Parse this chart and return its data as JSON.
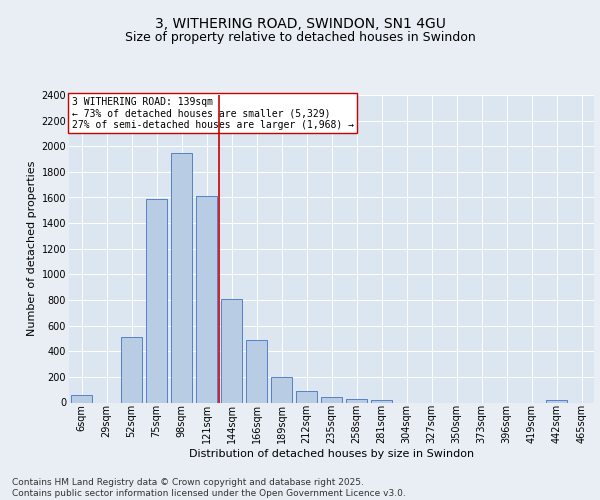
{
  "title_line1": "3, WITHERING ROAD, SWINDON, SN1 4GU",
  "title_line2": "Size of property relative to detached houses in Swindon",
  "xlabel": "Distribution of detached houses by size in Swindon",
  "ylabel": "Number of detached properties",
  "categories": [
    "6sqm",
    "29sqm",
    "52sqm",
    "75sqm",
    "98sqm",
    "121sqm",
    "144sqm",
    "166sqm",
    "189sqm",
    "212sqm",
    "235sqm",
    "258sqm",
    "281sqm",
    "304sqm",
    "327sqm",
    "350sqm",
    "373sqm",
    "396sqm",
    "419sqm",
    "442sqm",
    "465sqm"
  ],
  "values": [
    55,
    0,
    510,
    1590,
    1950,
    1610,
    810,
    490,
    200,
    90,
    40,
    25,
    20,
    0,
    0,
    0,
    0,
    0,
    0,
    20,
    0
  ],
  "bar_color": "#b8cce4",
  "bar_edge_color": "#4472c4",
  "vline_color": "#cc0000",
  "vline_x": 5.5,
  "annotation_text": "3 WITHERING ROAD: 139sqm\n← 73% of detached houses are smaller (5,329)\n27% of semi-detached houses are larger (1,968) →",
  "annotation_box_color": "#ffffff",
  "annotation_box_edge": "#cc0000",
  "ylim": [
    0,
    2400
  ],
  "yticks": [
    0,
    200,
    400,
    600,
    800,
    1000,
    1200,
    1400,
    1600,
    1800,
    2000,
    2200,
    2400
  ],
  "bg_color": "#e8eef4",
  "plot_bg_color": "#dce6f1",
  "grid_color": "#ffffff",
  "title_fontsize": 10,
  "subtitle_fontsize": 9,
  "axis_label_fontsize": 8,
  "tick_fontsize": 7,
  "annotation_fontsize": 7,
  "footer_text": "Contains HM Land Registry data © Crown copyright and database right 2025.\nContains public sector information licensed under the Open Government Licence v3.0.",
  "footer_fontsize": 6.5
}
